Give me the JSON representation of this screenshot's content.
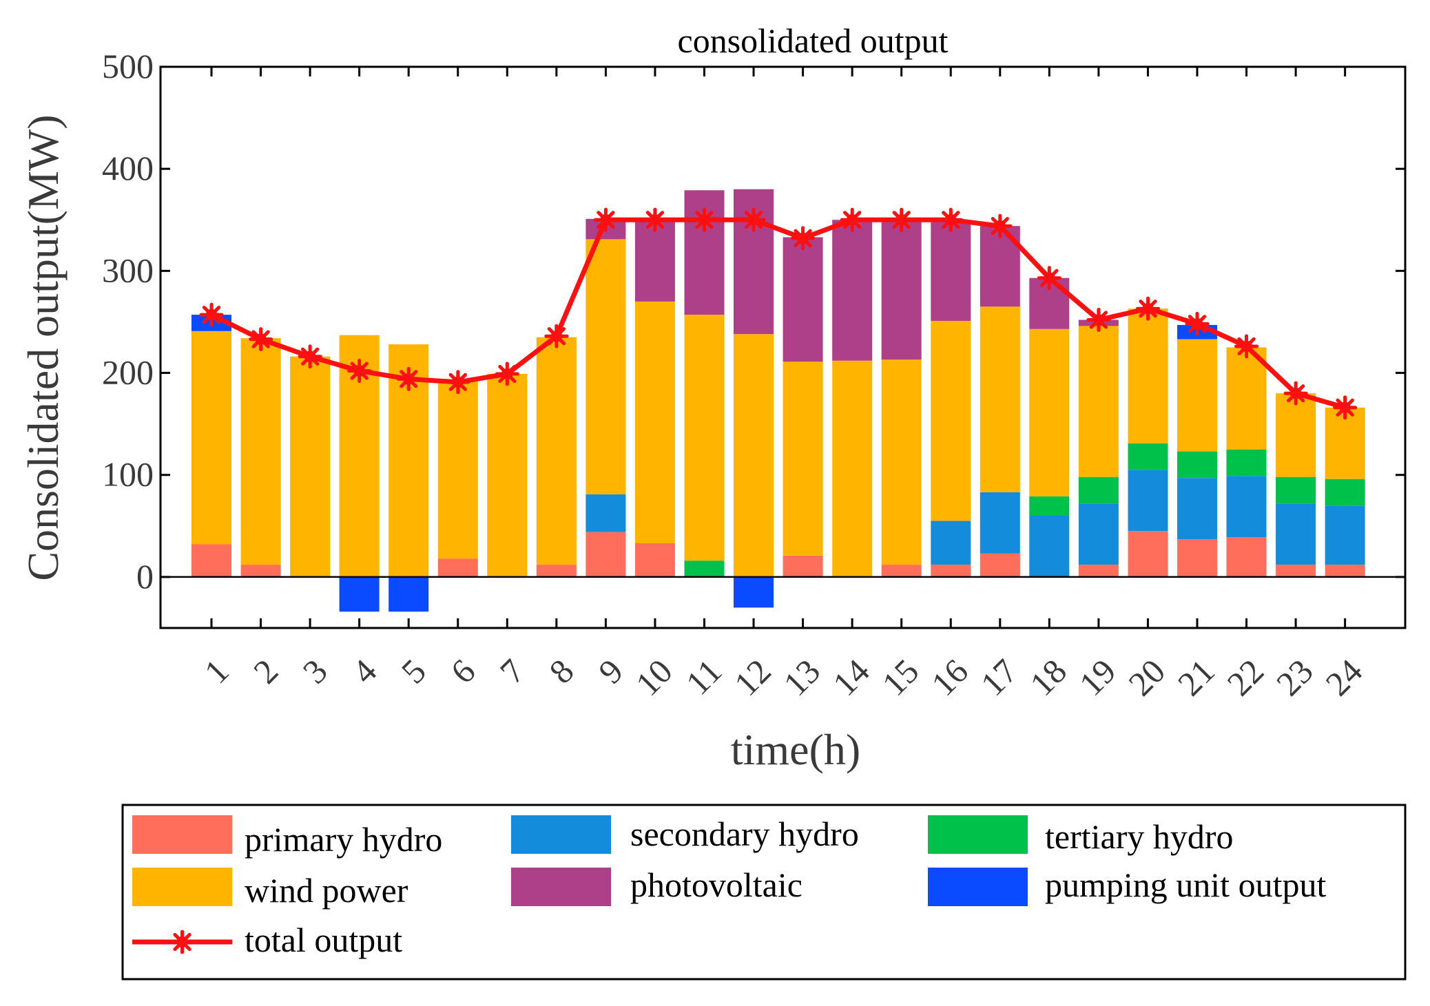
{
  "chart_data": {
    "type": "bar",
    "stacked": true,
    "title": "consolidated output",
    "xlabel": "time(h)",
    "ylabel": "Consolidated output(MW)",
    "ylim": [
      -50,
      500
    ],
    "yticks": [
      0,
      100,
      200,
      300,
      400,
      500
    ],
    "categories": [
      "1",
      "2",
      "3",
      "4",
      "5",
      "6",
      "7",
      "8",
      "9",
      "10",
      "11",
      "12",
      "13",
      "14",
      "15",
      "16",
      "17",
      "18",
      "19",
      "20",
      "21",
      "22",
      "23",
      "24"
    ],
    "series": [
      {
        "name": "primary hydro",
        "color": "#ff6e5a",
        "values": [
          32,
          12,
          0,
          0,
          0,
          18,
          0,
          12,
          44,
          33,
          0,
          0,
          21,
          0,
          12,
          12,
          23,
          0,
          12,
          45,
          37,
          39,
          12,
          12
        ]
      },
      {
        "name": "secondary hydro",
        "color": "#138ddb",
        "values": [
          0,
          0,
          0,
          0,
          0,
          0,
          0,
          0,
          37,
          0,
          0,
          0,
          0,
          0,
          0,
          43,
          60,
          60,
          60,
          60,
          60,
          60,
          60,
          58
        ]
      },
      {
        "name": "tertiary hydro",
        "color": "#00c14a",
        "values": [
          0,
          0,
          0,
          0,
          0,
          0,
          0,
          0,
          0,
          0,
          16,
          0,
          0,
          0,
          0,
          0,
          0,
          19,
          26,
          26,
          26,
          26,
          26,
          26
        ]
      },
      {
        "name": "wind power",
        "color": "#ffb400",
        "values": [
          209,
          222,
          216,
          237,
          228,
          174,
          199,
          223,
          250,
          237,
          241,
          238,
          190,
          212,
          201,
          196,
          182,
          164,
          148,
          132,
          110,
          100,
          82,
          70
        ]
      },
      {
        "name": "photovoltaic",
        "color": "#ae3f89",
        "values": [
          0,
          0,
          0,
          0,
          0,
          0,
          0,
          0,
          20,
          79,
          122,
          142,
          122,
          138,
          137,
          99,
          79,
          50,
          6,
          0,
          0,
          0,
          0,
          0
        ]
      },
      {
        "name": "pumping unit output",
        "color": "#0a4bff",
        "values": [
          16,
          0,
          0,
          -34,
          -34,
          0,
          0,
          0,
          0,
          0,
          0,
          -30,
          0,
          0,
          0,
          0,
          0,
          0,
          0,
          0,
          14,
          0,
          0,
          0
        ]
      }
    ],
    "line": {
      "name": "total output",
      "color": "#ff1010",
      "marker": "asterisk",
      "values": [
        257,
        233,
        216,
        202,
        194,
        191,
        199,
        236,
        350,
        350,
        350,
        350,
        332,
        350,
        350,
        350,
        344,
        293,
        252,
        263,
        248,
        226,
        180,
        166
      ]
    },
    "legend": {
      "position": "bottom",
      "entries": [
        "primary hydro",
        "secondary hydro",
        "tertiary hydro",
        "wind power",
        "photovoltaic",
        "pumping unit output",
        "total output"
      ]
    },
    "grid": false
  }
}
